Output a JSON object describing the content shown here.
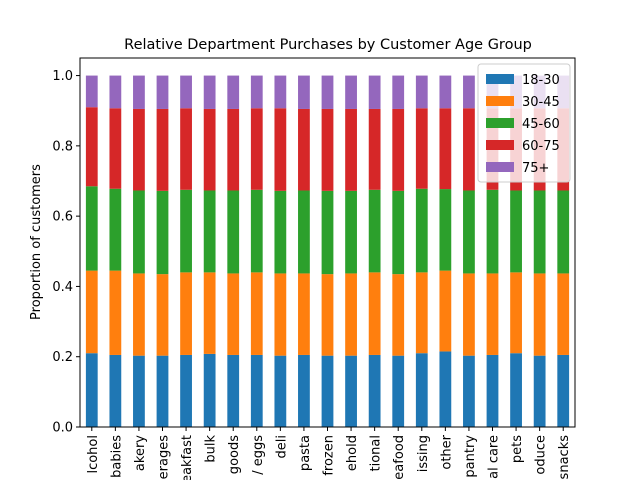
{
  "chart_data": {
    "type": "stacked_bar",
    "title": "Relative Department Purchases by Customer Age Group",
    "y_label": "Proportion of customers",
    "categories": [
      "lcohol",
      "babies",
      "akery",
      "erages",
      "eakfast",
      "bulk",
      "goods",
      "/ eggs",
      "deli",
      "pasta",
      "frozen",
      "ehold",
      "tional",
      "eafood",
      "issing",
      "other",
      "pantry",
      "al care",
      "pets",
      "oduce",
      "snacks"
    ],
    "series": [
      {
        "name": "18-30",
        "color": "#1f77b4",
        "values": [
          0.21,
          0.205,
          0.203,
          0.203,
          0.205,
          0.208,
          0.205,
          0.205,
          0.203,
          0.205,
          0.203,
          0.203,
          0.205,
          0.203,
          0.21,
          0.215,
          0.203,
          0.205,
          0.21,
          0.203,
          0.205
        ]
      },
      {
        "name": "30-45",
        "color": "#ff7f0e",
        "values": [
          0.235,
          0.24,
          0.234,
          0.232,
          0.235,
          0.232,
          0.232,
          0.235,
          0.234,
          0.232,
          0.232,
          0.234,
          0.235,
          0.232,
          0.23,
          0.23,
          0.234,
          0.232,
          0.23,
          0.234,
          0.232
        ]
      },
      {
        "name": "45-60",
        "color": "#2ca02c",
        "values": [
          0.24,
          0.233,
          0.236,
          0.237,
          0.235,
          0.233,
          0.236,
          0.235,
          0.235,
          0.236,
          0.237,
          0.235,
          0.235,
          0.237,
          0.238,
          0.232,
          0.236,
          0.238,
          0.233,
          0.236,
          0.236
        ]
      },
      {
        "name": "60-75",
        "color": "#d62728",
        "values": [
          0.225,
          0.229,
          0.232,
          0.233,
          0.232,
          0.232,
          0.232,
          0.232,
          0.235,
          0.232,
          0.233,
          0.233,
          0.23,
          0.233,
          0.229,
          0.23,
          0.234,
          0.232,
          0.234,
          0.234,
          0.234
        ]
      },
      {
        "name": "75+",
        "color": "#9467bd",
        "values": [
          0.09,
          0.093,
          0.095,
          0.095,
          0.093,
          0.095,
          0.095,
          0.093,
          0.093,
          0.095,
          0.095,
          0.095,
          0.095,
          0.095,
          0.093,
          0.093,
          0.093,
          0.093,
          0.093,
          0.093,
          0.093
        ]
      }
    ],
    "ylim": [
      0,
      1.05
    ],
    "yticks": [
      {
        "value": 0,
        "label": "0.0"
      },
      {
        "value": 0.2,
        "label": "0.2"
      },
      {
        "value": 0.4,
        "label": "0.4"
      },
      {
        "value": 0.6,
        "label": "0.6"
      },
      {
        "value": 0.8,
        "label": "0.8"
      },
      {
        "value": 1,
        "label": "1.0"
      }
    ],
    "legend": "upper right"
  }
}
